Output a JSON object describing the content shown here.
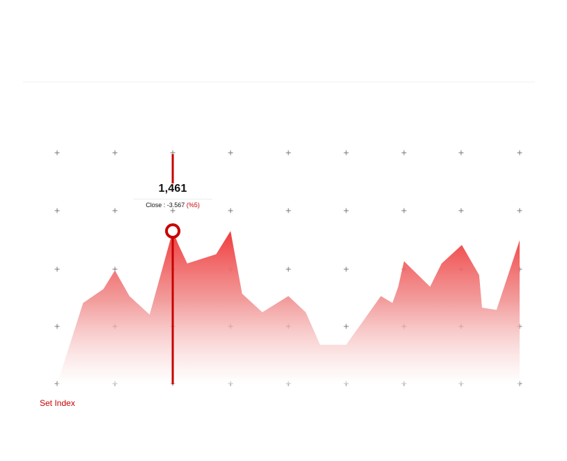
{
  "chart_data": {
    "type": "area",
    "series_name": "Set Index",
    "points": [
      [
        0,
        0
      ],
      [
        0.45,
        35
      ],
      [
        0.8,
        41
      ],
      [
        1.0,
        49
      ],
      [
        1.25,
        38
      ],
      [
        1.6,
        30
      ],
      [
        2.0,
        66
      ],
      [
        2.1,
        60
      ],
      [
        2.25,
        52
      ],
      [
        2.75,
        56
      ],
      [
        3.0,
        66
      ],
      [
        3.2,
        39
      ],
      [
        3.55,
        31
      ],
      [
        4.0,
        38
      ],
      [
        4.3,
        31
      ],
      [
        4.55,
        17
      ],
      [
        5.0,
        17
      ],
      [
        5.6,
        38
      ],
      [
        5.8,
        35
      ],
      [
        5.9,
        42
      ],
      [
        6.0,
        53
      ],
      [
        6.45,
        42
      ],
      [
        6.65,
        52
      ],
      [
        7.0,
        60
      ],
      [
        7.3,
        47
      ],
      [
        7.35,
        33
      ],
      [
        7.6,
        32
      ],
      [
        8.0,
        62
      ]
    ],
    "x_range": [
      0,
      8
    ],
    "y_range": [
      0,
      100
    ],
    "grid": "plus-markers",
    "grid_rows": 5,
    "grid_cols": 9,
    "legend": "Set Index",
    "colors": {
      "line": "#c80000",
      "fill_top": "#f03c3c",
      "fill_bottom": "#ffffff",
      "grid": "#777777",
      "marker": "#c80000"
    },
    "highlight": {
      "x": 2.0,
      "value": "1,461",
      "close_label": "Close : -3.567",
      "percent_label": "(%5)"
    }
  },
  "index_label": "Set Index"
}
